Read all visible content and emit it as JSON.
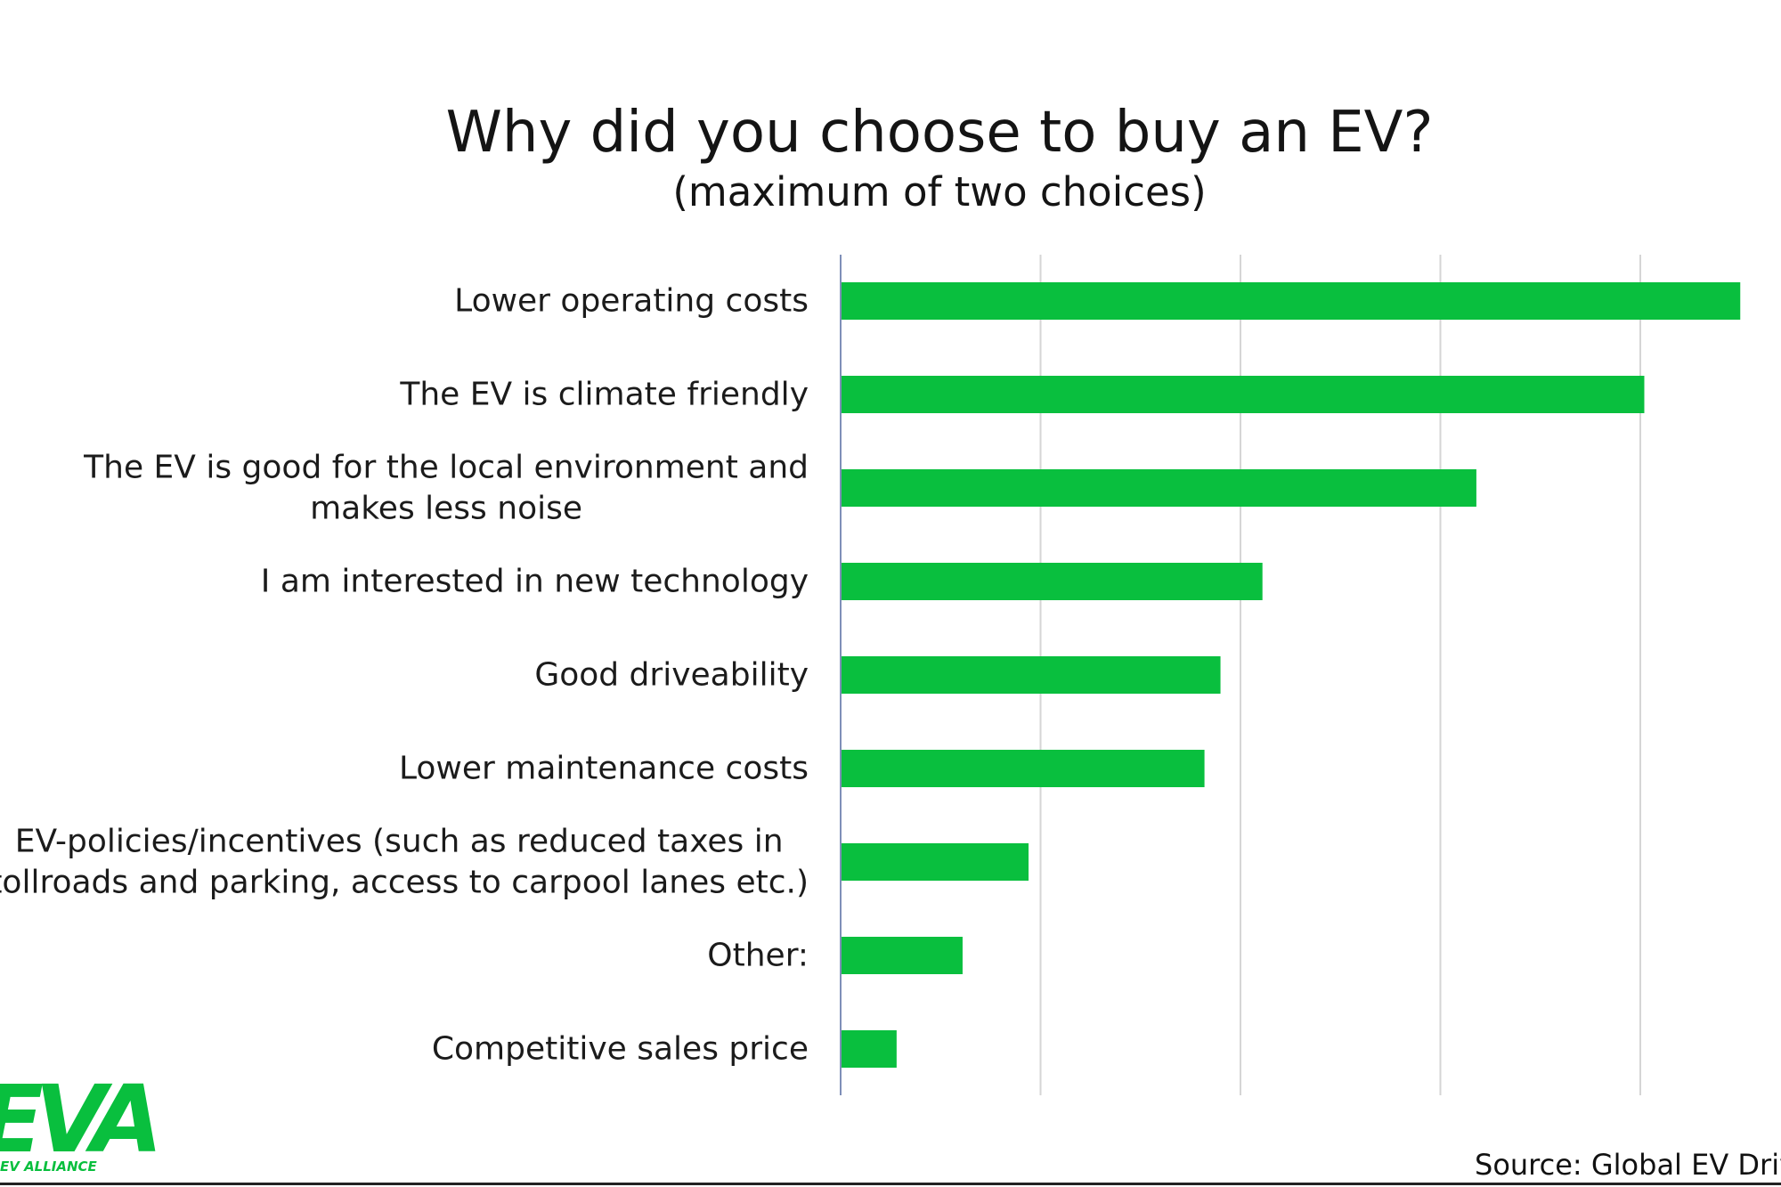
{
  "chart_data": {
    "type": "bar",
    "orientation": "horizontal",
    "title": "Why did you choose to buy an EV?",
    "subtitle": "(maximum of two choices)",
    "categories": [
      [
        "Lower operating costs"
      ],
      [
        "The EV is climate friendly"
      ],
      [
        "The EV is good for the local environment and",
        "makes less noise"
      ],
      [
        "I am interested in new technology"
      ],
      [
        "Good driveability"
      ],
      [
        "Lower maintenance costs"
      ],
      [
        "EV-policies/incentives (such as reduced taxes in",
        "tollroads and parking, access to carpool lanes etc.)"
      ],
      [
        "Other:"
      ],
      [
        "Competitive sales price"
      ]
    ],
    "values": [
      45,
      40.2,
      31.8,
      21.1,
      19,
      18.2,
      9.4,
      6.1,
      2.8
    ],
    "xlim": [
      0,
      46
    ],
    "grid_step": 10,
    "grid": true,
    "legend": "none",
    "bar_color": "#09bf3e"
  },
  "logo": {
    "wordmark": "EVA",
    "tagline": "EV ALLIANCE"
  },
  "source": "Source: Global EV Drive"
}
